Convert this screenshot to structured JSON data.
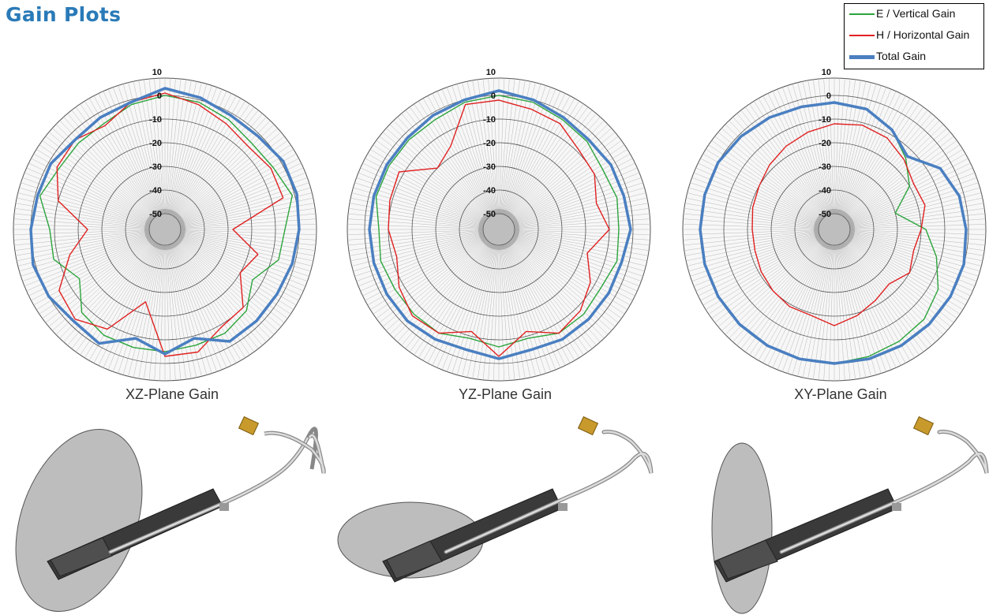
{
  "title": "Gain Plots",
  "colors": {
    "title": "#2a7ab8",
    "vertical": "#2ca43c",
    "horizontal": "#e02020",
    "total": "#4a7fc1"
  },
  "legend": [
    {
      "label": "E / Vertical Gain",
      "color": "#2ca43c"
    },
    {
      "label": "H / Horizontal Gain",
      "color": "#e02020"
    },
    {
      "label": "Total Gain",
      "color": "#4a7fc1"
    }
  ],
  "chart_data": [
    {
      "type": "polar-line",
      "caption": "XZ-Plane Gain",
      "radial_ticks": [
        10,
        0,
        -10,
        -20,
        -30,
        -40,
        -50
      ],
      "rlim": [
        -50,
        10
      ],
      "angle_units": "degrees, 0 at top, clockwise",
      "series": [
        {
          "name": "E / Vertical Gain",
          "color": "#2ca43c",
          "angles": [
            0,
            15,
            30,
            45,
            60,
            75,
            90,
            105,
            120,
            135,
            150,
            165,
            180,
            195,
            210,
            225,
            240,
            255,
            270,
            285,
            300,
            315,
            330,
            345
          ],
          "values": [
            0,
            -1,
            -3,
            -5,
            -4,
            -1,
            -6,
            -7,
            -14,
            -8,
            -6,
            -6,
            -5,
            -5,
            -5,
            -7,
            -15,
            -8,
            -8,
            -2,
            -5,
            -5,
            -5,
            -2
          ]
        },
        {
          "name": "H / Horizontal Gain",
          "color": "#e02020",
          "angles": [
            0,
            15,
            30,
            45,
            60,
            75,
            90,
            105,
            120,
            135,
            150,
            165,
            180,
            195,
            210,
            225,
            240,
            255,
            270,
            285,
            300,
            315,
            330,
            345
          ],
          "values": [
            1,
            -2,
            -5,
            -7,
            -5,
            -5,
            -28,
            -16,
            -20,
            -10,
            -9,
            -3,
            -3,
            -25,
            -8,
            -3,
            -5,
            -15,
            -24,
            -10,
            -4,
            -3,
            -6,
            -1
          ]
        },
        {
          "name": "Total Gain",
          "color": "#4a7fc1",
          "angles": [
            0,
            15,
            30,
            45,
            60,
            75,
            90,
            105,
            120,
            135,
            150,
            165,
            180,
            195,
            210,
            225,
            240,
            255,
            270,
            285,
            300,
            315,
            330,
            345
          ],
          "values": [
            3,
            1,
            -1,
            -1,
            1,
            1,
            0,
            -1,
            -2,
            -2,
            -2,
            -9,
            -4,
            -9,
            -1,
            -2,
            0,
            1,
            0,
            -1,
            -1,
            -3,
            -2,
            -1
          ]
        }
      ]
    },
    {
      "type": "polar-line",
      "caption": "YZ-Plane Gain",
      "radial_ticks": [
        10,
        0,
        -10,
        -20,
        -30,
        -40,
        -50
      ],
      "rlim": [
        -50,
        10
      ],
      "angle_units": "degrees, 0 at top, clockwise",
      "series": [
        {
          "name": "E / Vertical Gain",
          "color": "#2ca43c",
          "angles": [
            0,
            15,
            30,
            45,
            60,
            75,
            90,
            105,
            120,
            135,
            150,
            165,
            180,
            195,
            210,
            225,
            240,
            255,
            270,
            285,
            300,
            315,
            330,
            345
          ],
          "values": [
            0,
            -1,
            -3,
            -4,
            -6,
            -5,
            -6,
            -5,
            -7,
            -6,
            -6,
            -9,
            -7,
            -9,
            -6,
            -6,
            -6,
            -5,
            -6,
            -3,
            -3,
            -3,
            -3,
            -1
          ]
        },
        {
          "name": "H / Horizontal Gain",
          "color": "#e02020",
          "angles": [
            0,
            15,
            30,
            45,
            60,
            75,
            90,
            105,
            120,
            135,
            150,
            165,
            180,
            195,
            210,
            225,
            240,
            255,
            270,
            285,
            300,
            315,
            330,
            345
          ],
          "values": [
            -2,
            -4,
            -5,
            -9,
            -10,
            -14,
            -10,
            -18,
            -12,
            -8,
            -6,
            -12,
            -3,
            -12,
            -6,
            -5,
            -8,
            -12,
            -10,
            -9,
            -8,
            -20,
            -16,
            -2
          ]
        },
        {
          "name": "Total Gain",
          "color": "#4a7fc1",
          "angles": [
            0,
            15,
            30,
            45,
            60,
            75,
            90,
            105,
            120,
            135,
            150,
            165,
            180,
            195,
            210,
            225,
            240,
            255,
            270,
            285,
            300,
            315,
            330,
            345
          ],
          "values": [
            2,
            0,
            -2,
            -3,
            -2,
            -2,
            -1,
            -3,
            -3,
            -3,
            -3,
            -4,
            -2,
            -4,
            -3,
            -2,
            -2,
            -2,
            -2,
            -2,
            -2,
            -2,
            -1,
            0
          ]
        }
      ]
    },
    {
      "type": "polar-line",
      "caption": "XY-Plane Gain",
      "radial_ticks": [
        10,
        0,
        -10,
        -20,
        -30,
        -40,
        -50
      ],
      "rlim": [
        -50,
        10
      ],
      "angle_units": "degrees, 0 at top, clockwise",
      "series": [
        {
          "name": "E / Vertical Gain",
          "color": "#2ca43c",
          "angles": [
            0,
            15,
            30,
            45,
            60,
            75,
            90,
            105,
            120,
            135,
            150,
            165,
            180,
            195,
            210,
            225,
            240,
            255,
            270,
            285,
            300,
            315,
            330,
            345
          ],
          "values": [
            -3,
            -4,
            -8,
            -14,
            -20,
            -30,
            -18,
            -12,
            -6,
            -3,
            -2,
            -1,
            0,
            0,
            0,
            0,
            0,
            0,
            0,
            0,
            0,
            -1,
            -2,
            -3
          ]
        },
        {
          "name": "H / Horizontal Gain",
          "color": "#e02020",
          "angles": [
            0,
            15,
            30,
            45,
            60,
            75,
            90,
            105,
            120,
            135,
            150,
            165,
            180,
            195,
            210,
            225,
            240,
            255,
            270,
            285,
            300,
            315,
            330,
            345
          ],
          "values": [
            -12,
            -11,
            -12,
            -15,
            -18,
            -17,
            -20,
            -22,
            -20,
            -24,
            -22,
            -19,
            -16,
            -19,
            -19,
            -20,
            -21,
            -22,
            -22,
            -21,
            -20,
            -18,
            -16,
            -14
          ]
        },
        {
          "name": "Total Gain",
          "color": "#4a7fc1",
          "angles": [
            0,
            15,
            30,
            45,
            60,
            75,
            90,
            105,
            120,
            135,
            150,
            165,
            180,
            195,
            210,
            225,
            240,
            255,
            270,
            285,
            300,
            315,
            330,
            345
          ],
          "values": [
            -3,
            -4,
            -8,
            -13,
            -5,
            -2,
            -1,
            0,
            0,
            0,
            0,
            0,
            0,
            0,
            0,
            0,
            0,
            0,
            0,
            0,
            0,
            -1,
            -2,
            -3
          ]
        }
      ]
    }
  ]
}
